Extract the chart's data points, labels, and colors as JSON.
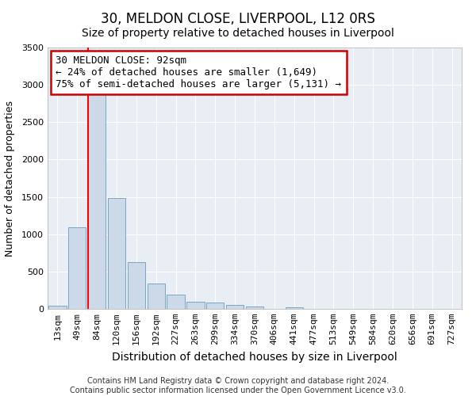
{
  "title": "30, MELDON CLOSE, LIVERPOOL, L12 0RS",
  "subtitle": "Size of property relative to detached houses in Liverpool",
  "xlabel": "Distribution of detached houses by size in Liverpool",
  "ylabel": "Number of detached properties",
  "bar_labels": [
    "13sqm",
    "49sqm",
    "84sqm",
    "120sqm",
    "156sqm",
    "192sqm",
    "227sqm",
    "263sqm",
    "299sqm",
    "334sqm",
    "370sqm",
    "406sqm",
    "441sqm",
    "477sqm",
    "513sqm",
    "549sqm",
    "584sqm",
    "620sqm",
    "656sqm",
    "691sqm",
    "727sqm"
  ],
  "bar_values": [
    40,
    1090,
    2880,
    1480,
    630,
    335,
    190,
    100,
    80,
    50,
    30,
    5,
    20,
    0,
    0,
    0,
    0,
    0,
    0,
    0,
    0
  ],
  "bar_color": "#ccd9e8",
  "bar_edge_color": "#6b9bbf",
  "red_line_index": 2,
  "annotation_lines": [
    "30 MELDON CLOSE: 92sqm",
    "← 24% of detached houses are smaller (1,649)",
    "75% of semi-detached houses are larger (5,131) →"
  ],
  "box_facecolor": "#ffffff",
  "box_edgecolor": "#cc0000",
  "plot_bg": "#e8eef4",
  "fig_bg": "#ffffff",
  "ylim": [
    0,
    3500
  ],
  "yticks": [
    0,
    500,
    1000,
    1500,
    2000,
    2500,
    3000,
    3500
  ],
  "footer_line1": "Contains HM Land Registry data © Crown copyright and database right 2024.",
  "footer_line2": "Contains public sector information licensed under the Open Government Licence v3.0.",
  "title_fontsize": 12,
  "xlabel_fontsize": 10,
  "ylabel_fontsize": 9,
  "tick_fontsize": 8,
  "footer_fontsize": 7,
  "annotation_fontsize": 9
}
